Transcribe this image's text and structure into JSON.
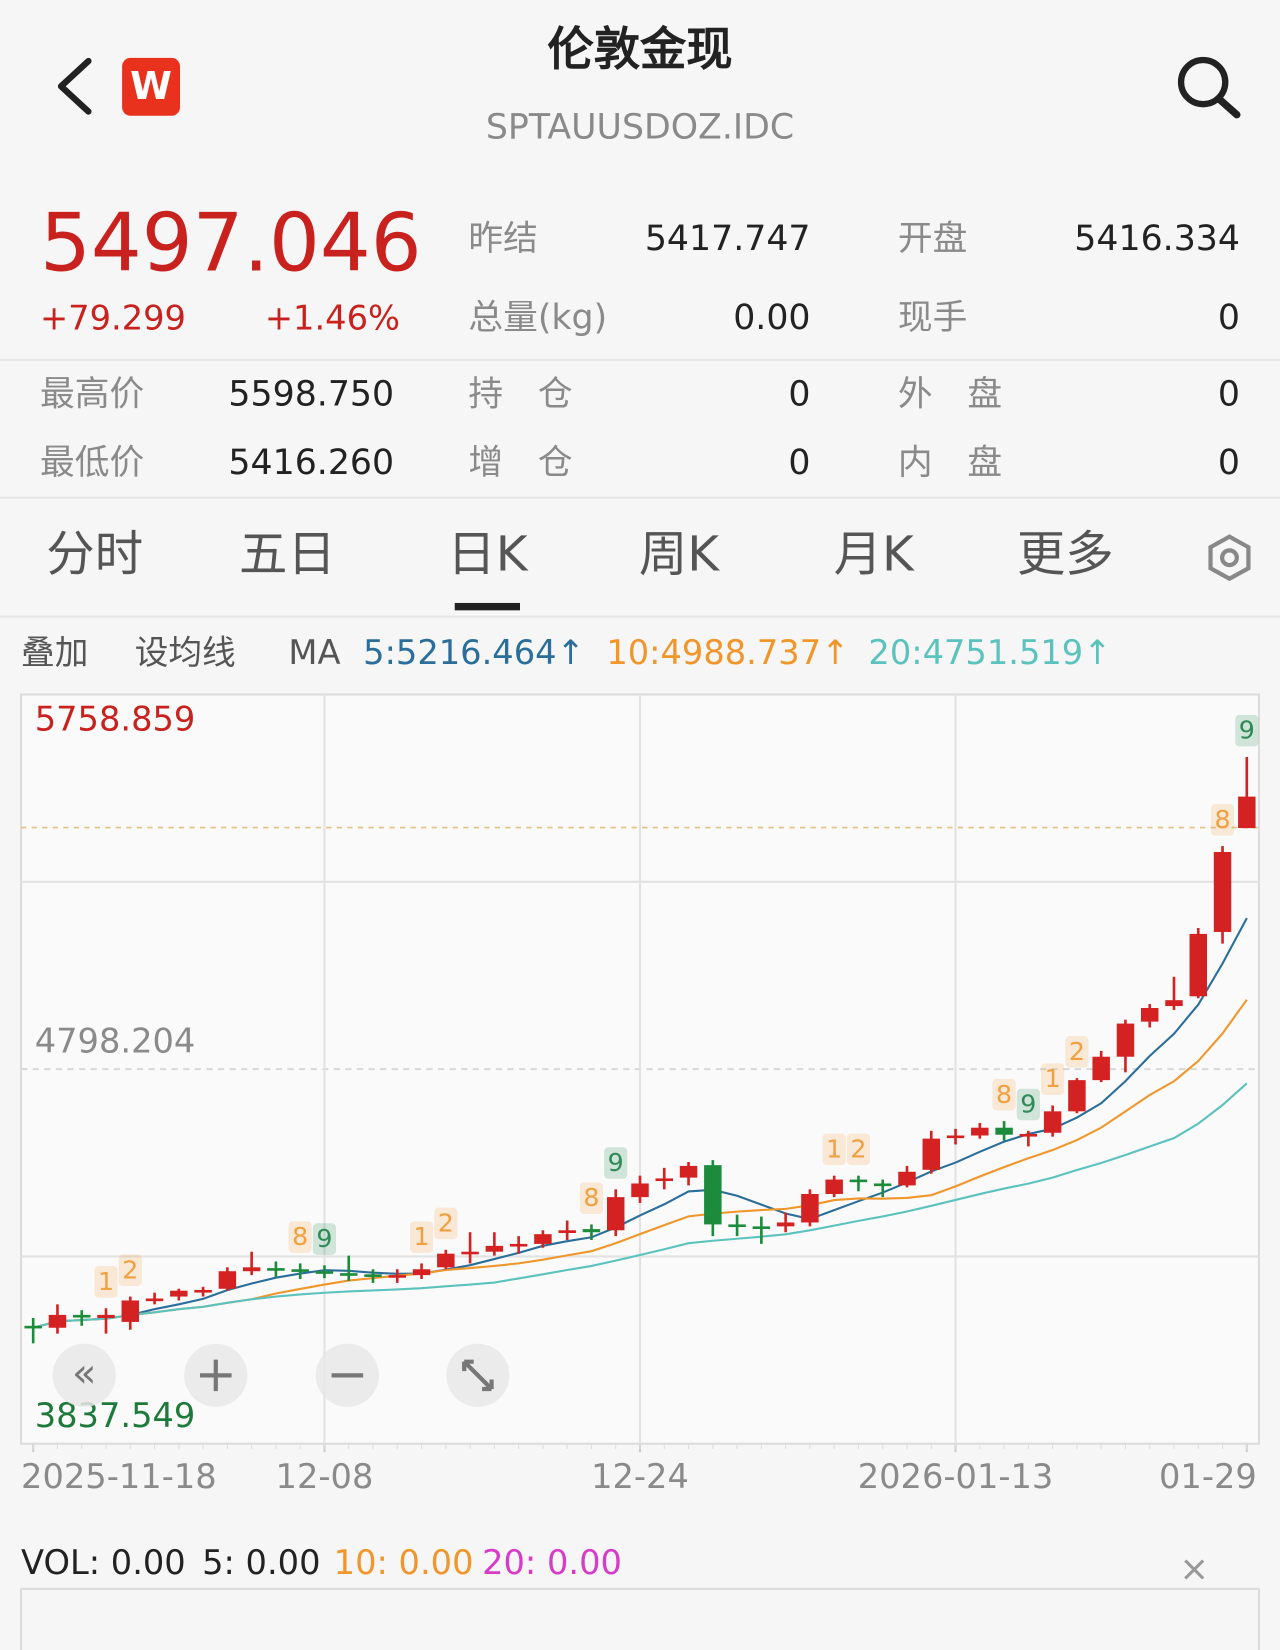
{
  "header": {
    "title": "伦敦金现",
    "code": "SPTAUUSDOZ.IDC",
    "badge": "W"
  },
  "quote": {
    "price": "5497.046",
    "change": "+79.299",
    "change_pct": "+1.46%",
    "fields": [
      {
        "label": "昨结",
        "value": "5417.747"
      },
      {
        "label": "开盘",
        "value": "5416.334"
      },
      {
        "label": "总量(kg)",
        "value": "0.00"
      },
      {
        "label": "现手",
        "value": "0"
      },
      {
        "label": "最高价",
        "value": "5598.750"
      },
      {
        "label": "持　仓",
        "value": "0"
      },
      {
        "label": "外　盘",
        "value": "0"
      },
      {
        "label": "最低价",
        "value": "5416.260"
      },
      {
        "label": "增　仓",
        "value": "0"
      },
      {
        "label": "内　盘",
        "value": "0"
      }
    ]
  },
  "tabs": [
    "分时",
    "五日",
    "日K",
    "周K",
    "月K",
    "更多"
  ],
  "active_tab": 2,
  "indicators": {
    "overlay": "叠加",
    "ma_setting": "设均线",
    "ma_label": "MA",
    "ma": [
      {
        "text": "5:5216.464↑",
        "color": "#2b6e99",
        "period": 5
      },
      {
        "text": "10:4988.737↑",
        "color": "#f0962a",
        "period": 10
      },
      {
        "text": "20:4751.519↑",
        "color": "#5cc2bd",
        "period": 20
      }
    ]
  },
  "chart_data": {
    "type": "candlestick",
    "x_labels": [
      "2025-11-18",
      null,
      null,
      null,
      null,
      null,
      null,
      null,
      null,
      null,
      null,
      null,
      "12-08",
      null,
      null,
      null,
      null,
      null,
      null,
      null,
      null,
      null,
      null,
      null,
      null,
      "12-24",
      null,
      null,
      null,
      null,
      null,
      null,
      null,
      null,
      null,
      null,
      null,
      null,
      "2026-01-13",
      null,
      null,
      null,
      null,
      null,
      null,
      null,
      null,
      null,
      null,
      null,
      "01-29"
    ],
    "candles": [
      [
        4140,
        4160,
        4095,
        4135
      ],
      [
        4135,
        4195,
        4120,
        4168
      ],
      [
        4168,
        4180,
        4140,
        4162
      ],
      [
        4160,
        4185,
        4120,
        4168
      ],
      [
        4150,
        4215,
        4130,
        4205
      ],
      [
        4205,
        4225,
        4195,
        4210
      ],
      [
        4215,
        4235,
        4205,
        4230
      ],
      [
        4228,
        4240,
        4215,
        4232
      ],
      [
        4235,
        4290,
        4230,
        4280
      ],
      [
        4280,
        4330,
        4270,
        4290
      ],
      [
        4288,
        4305,
        4265,
        4285
      ],
      [
        4285,
        4300,
        4260,
        4282
      ],
      [
        4280,
        4295,
        4262,
        4275
      ],
      [
        4275,
        4320,
        4255,
        4272
      ],
      [
        4272,
        4285,
        4250,
        4268
      ],
      [
        4268,
        4285,
        4250,
        4270
      ],
      [
        4270,
        4300,
        4260,
        4285
      ],
      [
        4290,
        4335,
        4285,
        4325
      ],
      [
        4325,
        4380,
        4300,
        4330
      ],
      [
        4330,
        4380,
        4320,
        4345
      ],
      [
        4345,
        4370,
        4325,
        4350
      ],
      [
        4350,
        4385,
        4340,
        4375
      ],
      [
        4378,
        4410,
        4360,
        4385
      ],
      [
        4388,
        4400,
        4360,
        4380
      ],
      [
        4385,
        4490,
        4370,
        4470
      ],
      [
        4470,
        4525,
        4455,
        4505
      ],
      [
        4515,
        4545,
        4490,
        4518
      ],
      [
        4520,
        4560,
        4500,
        4550
      ],
      [
        4552,
        4565,
        4370,
        4400
      ],
      [
        4400,
        4425,
        4370,
        4395
      ],
      [
        4395,
        4420,
        4350,
        4390
      ],
      [
        4395,
        4430,
        4380,
        4405
      ],
      [
        4405,
        4490,
        4395,
        4478
      ],
      [
        4478,
        4525,
        4470,
        4515
      ],
      [
        4515,
        4525,
        4485,
        4510
      ],
      [
        4505,
        4515,
        4470,
        4500
      ],
      [
        4500,
        4550,
        4495,
        4535
      ],
      [
        4540,
        4640,
        4530,
        4620
      ],
      [
        4625,
        4645,
        4605,
        4628
      ],
      [
        4628,
        4660,
        4620,
        4648
      ],
      [
        4648,
        4665,
        4615,
        4630
      ],
      [
        4630,
        4640,
        4600,
        4632
      ],
      [
        4635,
        4705,
        4625,
        4690
      ],
      [
        4690,
        4775,
        4685,
        4770
      ],
      [
        4770,
        4845,
        4765,
        4830
      ],
      [
        4830,
        4925,
        4790,
        4915
      ],
      [
        4920,
        4965,
        4905,
        4955
      ],
      [
        4960,
        5035,
        4950,
        4975
      ],
      [
        4985,
        5160,
        4980,
        5145
      ],
      [
        5150,
        5370,
        5120,
        5355
      ],
      [
        5416.334,
        5598.75,
        5416.26,
        5497.046
      ]
    ],
    "up_color": "#d42222",
    "down_color": "#1c8c3c",
    "ylim": [
      3837.549,
      5758.859
    ],
    "yticks": [
      5758.859,
      4798.204,
      3837.549
    ],
    "ytick_colors": [
      "#c8211e",
      "#8a8a8a",
      "#1e7a3a"
    ],
    "ref_line": 5417.747,
    "td_marks": [
      null,
      null,
      null,
      {
        "label": "1",
        "color": "#f0a040"
      },
      {
        "label": "2",
        "color": "#f0a040"
      },
      null,
      null,
      null,
      null,
      null,
      null,
      {
        "label": "8",
        "color": "#f0a040"
      },
      {
        "label": "9",
        "color": "#2e8b57"
      },
      null,
      null,
      null,
      {
        "label": "1",
        "color": "#f0a040"
      },
      {
        "label": "2",
        "color": "#f0a040"
      },
      null,
      null,
      null,
      null,
      null,
      {
        "label": "8",
        "color": "#f0a040"
      },
      {
        "label": "9",
        "color": "#2e8b57"
      },
      null,
      null,
      null,
      null,
      null,
      null,
      null,
      null,
      {
        "label": "1",
        "color": "#f0a040"
      },
      {
        "label": "2",
        "color": "#f0a040"
      },
      null,
      null,
      null,
      null,
      null,
      {
        "label": "8",
        "color": "#f0a040"
      },
      {
        "label": "9",
        "color": "#2e8b57"
      },
      {
        "label": "1",
        "color": "#f0a040"
      },
      {
        "label": "2",
        "color": "#f0a040"
      },
      null,
      null,
      null,
      null,
      null,
      {
        "label": "8",
        "color": "#f0a040"
      },
      {
        "label": "9",
        "color": "#2e8b57"
      }
    ]
  },
  "volume": {
    "items": [
      {
        "text": "VOL: 0.00",
        "color": "#222"
      },
      {
        "text": "5: 0.00",
        "color": "#222"
      },
      {
        "text": "10: 0.00",
        "color": "#f0962a"
      },
      {
        "text": "20: 0.00",
        "color": "#d63cc8"
      }
    ]
  }
}
